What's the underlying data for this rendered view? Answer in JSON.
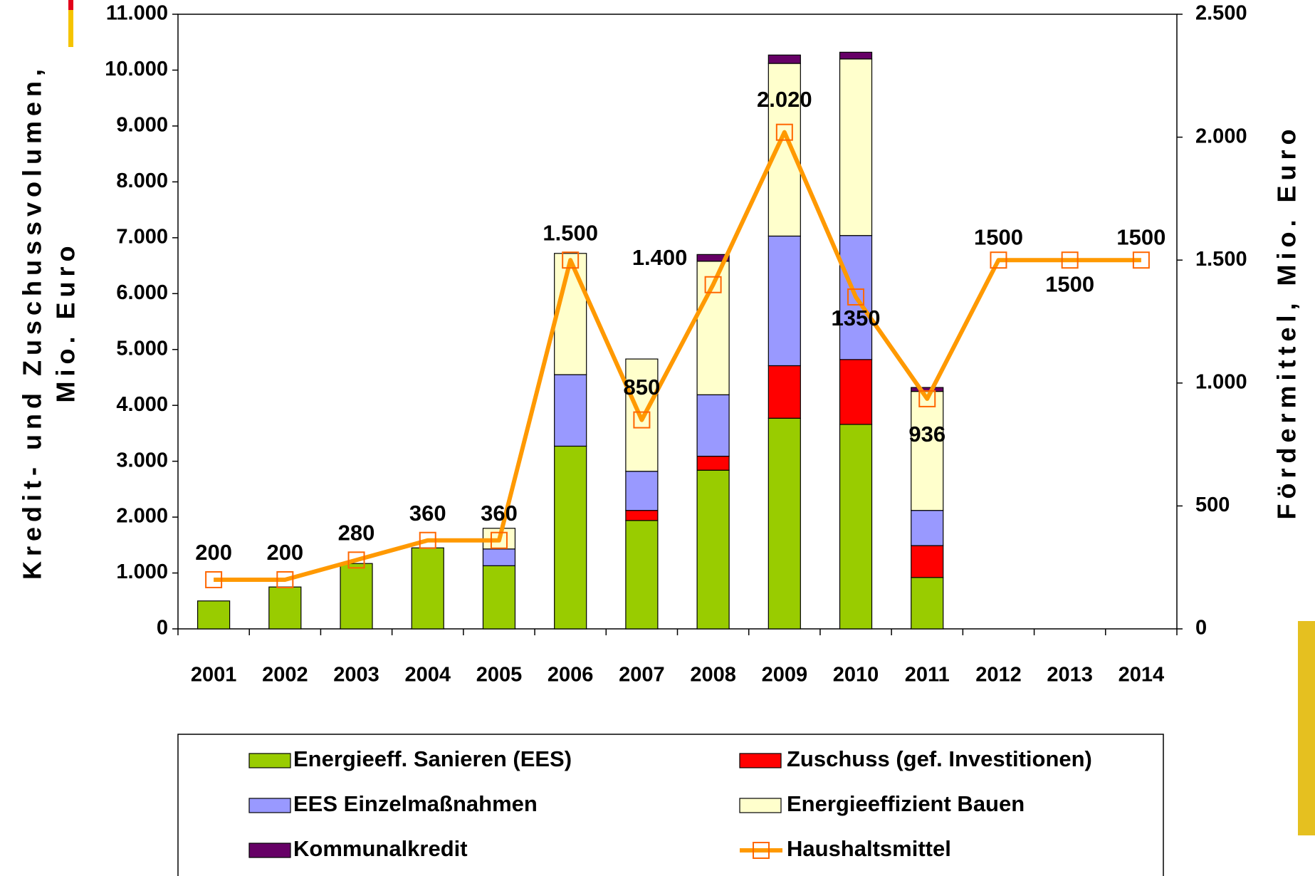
{
  "chart_data": {
    "type": "bar-line",
    "ylabel": [
      "Kredit- und Zuschussvolumen,",
      "Mio. Euro"
    ],
    "y2label": "Fördermittel, Mio. Euro",
    "categories": [
      "2001",
      "2002",
      "2003",
      "2004",
      "2005",
      "2006",
      "2007",
      "2008",
      "2009",
      "2010",
      "2011",
      "2012",
      "2013",
      "2014"
    ],
    "series": [
      {
        "name": "Energieeff. Sanieren (EES)",
        "color": "#99cc00",
        "values": [
          500,
          750,
          1170,
          1450,
          1130,
          3270,
          1940,
          2840,
          3770,
          3660,
          920,
          null,
          null,
          null
        ]
      },
      {
        "name": "Zuschuss (gef. Investitionen)",
        "color": "#ff0000",
        "values": [
          null,
          null,
          null,
          null,
          null,
          null,
          180,
          250,
          940,
          1160,
          570,
          null,
          null,
          null
        ]
      },
      {
        "name": "EES Einzelmaßnahmen",
        "color": "#9999ff",
        "values": [
          null,
          null,
          null,
          null,
          300,
          1280,
          700,
          1100,
          2320,
          2220,
          630,
          null,
          null,
          null
        ]
      },
      {
        "name": "Energieeffizient Bauen",
        "color": "#ffffcc",
        "values": [
          null,
          null,
          null,
          null,
          370,
          2170,
          2010,
          2390,
          3090,
          3160,
          2130,
          null,
          null,
          null
        ]
      },
      {
        "name": "Kommunalkredit",
        "color": "#660066",
        "values": [
          null,
          null,
          null,
          null,
          null,
          null,
          null,
          120,
          150,
          120,
          70,
          null,
          null,
          null
        ]
      },
      {
        "name": "Haushaltsmittel",
        "color": "#ff9900",
        "marker_color": "#ff6600",
        "axis": "y2",
        "values": [
          200,
          200,
          280,
          360,
          360,
          1500,
          850,
          1400,
          2020,
          1350,
          936,
          1500,
          1500,
          1500
        ],
        "value_labels": [
          "200",
          "200",
          "280",
          "360",
          "360",
          "1.500",
          "850",
          "1.400",
          "2.020",
          "1350",
          "936",
          "1500",
          "1500",
          "1500"
        ]
      }
    ],
    "ylim": [
      0,
      11000
    ],
    "yticks": [
      0,
      {
        "value": 1000,
        "label": "1.000"
      },
      {
        "value": 2000,
        "label": "2.000"
      },
      {
        "value": 3000,
        "label": "3.000"
      },
      {
        "value": 4000,
        "label": "4.000"
      },
      {
        "value": 5000,
        "label": "5.000"
      },
      {
        "value": 6000,
        "label": "6.000"
      },
      {
        "value": 7000,
        "label": "7.000"
      },
      {
        "value": 8000,
        "label": "8.000"
      },
      {
        "value": 9000,
        "label": "9.000"
      },
      {
        "value": 10000,
        "label": "10.000"
      },
      {
        "value": 11000,
        "label": "11.000"
      }
    ],
    "y2lim": [
      0,
      2500
    ],
    "y2ticks": [
      0,
      500,
      {
        "value": 1000,
        "label": "1.000"
      },
      {
        "value": 1500,
        "label": "1.500"
      },
      {
        "value": 2000,
        "label": "2.000"
      },
      {
        "value": 2500,
        "label": "2.500"
      }
    ]
  }
}
